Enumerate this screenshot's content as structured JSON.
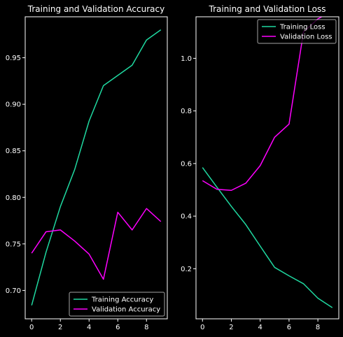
{
  "chart_data": [
    {
      "type": "line",
      "title": "Training and Validation Accuracy",
      "x": [
        0,
        1,
        2,
        3,
        4,
        5,
        6,
        7,
        8,
        9
      ],
      "xlim": [
        -0.45,
        9.45
      ],
      "ylim": [
        0.6695,
        0.994
      ],
      "xticks": [
        0,
        2,
        4,
        6,
        8
      ],
      "yticks": [
        0.7,
        0.75,
        0.8,
        0.85,
        0.9,
        0.95
      ],
      "ytick_labels": [
        "0.70",
        "0.75",
        "0.80",
        "0.85",
        "0.90",
        "0.95"
      ],
      "legend_loc": "lower-right",
      "series": [
        {
          "name": "Training Accuracy",
          "color": "#1fd8a0",
          "values": [
            0.684,
            0.741,
            0.79,
            0.83,
            0.882,
            0.92,
            0.931,
            0.942,
            0.969,
            0.98
          ]
        },
        {
          "name": "Validation Accuracy",
          "color": "#ff00ff",
          "values": [
            0.74,
            0.763,
            0.765,
            0.753,
            0.739,
            0.712,
            0.784,
            0.765,
            0.788,
            0.774
          ]
        }
      ]
    },
    {
      "type": "line",
      "title": "Training and Validation Loss",
      "x": [
        0,
        1,
        2,
        3,
        4,
        5,
        6,
        7,
        8,
        9
      ],
      "xlim": [
        -0.45,
        9.45
      ],
      "ylim": [
        0.0095,
        1.158
      ],
      "xticks": [
        0,
        2,
        4,
        6,
        8
      ],
      "yticks": [
        0.2,
        0.4,
        0.6,
        0.8,
        1.0
      ],
      "ytick_labels": [
        "0.2",
        "0.4",
        "0.6",
        "0.8",
        "1.0"
      ],
      "legend_loc": "upper-right",
      "series": [
        {
          "name": "Training Loss",
          "color": "#1fd8a0",
          "values": [
            0.585,
            0.51,
            0.437,
            0.368,
            0.286,
            0.205,
            0.173,
            0.143,
            0.088,
            0.052
          ]
        },
        {
          "name": "Validation Loss",
          "color": "#ff00ff",
          "values": [
            0.535,
            0.502,
            0.498,
            0.525,
            0.592,
            0.7,
            0.75,
            1.1,
            1.15,
            1.18
          ]
        }
      ]
    }
  ]
}
